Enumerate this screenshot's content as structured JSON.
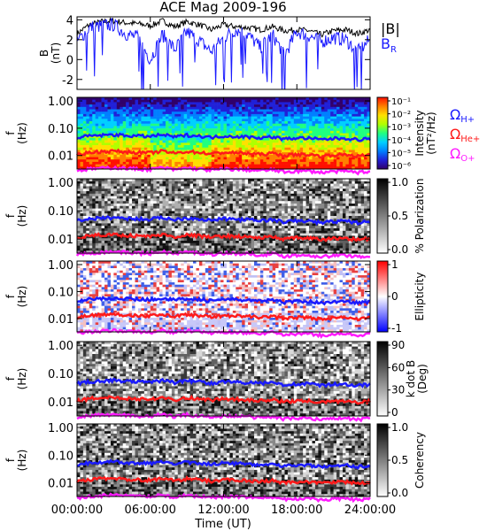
{
  "title": "ACE Mag 2009-196",
  "xlabel": "Time (UT)",
  "x_ticks": [
    "00:00:00",
    "06:00:00",
    "12:00:00",
    "18:00:00",
    "24:00:00"
  ],
  "x_tick_hours": [
    0,
    6,
    12,
    18,
    24
  ],
  "colors": {
    "B": "#000000",
    "BR": "#1a1aff",
    "H": "#1a1aff",
    "He": "#ff1a1a",
    "O": "#ff1aff"
  },
  "chart_data": [
    {
      "type": "line",
      "ylabel": [
        "B",
        "(nT)"
      ],
      "ylim": [
        -3,
        4.3
      ],
      "y_ticks": [
        "4",
        "2",
        "0",
        "-2"
      ],
      "y_tick_values": [
        4,
        2,
        0,
        -2
      ],
      "legend": [
        "|B|",
        "BR"
      ],
      "legend_main": [
        "|B|",
        "B"
      ],
      "legend_sub": [
        "",
        "R"
      ],
      "series": [
        {
          "name": "|B|",
          "x_hours": [
            0,
            1,
            2,
            3,
            4,
            5,
            6,
            7,
            8,
            9,
            10,
            11,
            12,
            13,
            14,
            15,
            16,
            17,
            18,
            19,
            20,
            21,
            22,
            23,
            24
          ],
          "values": [
            2.6,
            3.5,
            3.8,
            3.9,
            3.7,
            3.6,
            3.4,
            3.9,
            3.3,
            3.8,
            3.5,
            3.0,
            3.5,
            3.3,
            3.2,
            3.0,
            3.3,
            2.9,
            3.0,
            2.9,
            2.5,
            2.9,
            3.0,
            2.6,
            3.0
          ]
        },
        {
          "name": "BR",
          "x_hours": [
            0,
            1,
            2,
            3,
            4,
            5,
            6,
            7,
            8,
            9,
            10,
            11,
            12,
            13,
            14,
            15,
            16,
            17,
            18,
            19,
            20,
            21,
            22,
            23,
            24
          ],
          "values": [
            1.8,
            3.2,
            3.4,
            3.5,
            2.6,
            2.2,
            0.0,
            2.5,
            1.0,
            2.8,
            1.9,
            0.8,
            2.2,
            3.0,
            2.5,
            1.2,
            2.5,
            0.5,
            2.8,
            2.4,
            1.8,
            2.2,
            2.0,
            0.8,
            2.0
          ]
        }
      ]
    },
    {
      "type": "heatmap",
      "ylabel": [
        "f",
        "(Hz)"
      ],
      "y_ticks": [
        "1.00",
        "0.10",
        "0.01"
      ],
      "y_tick_values": [
        1,
        0.1,
        0.01
      ],
      "colorbar": {
        "label": "Intensity",
        "unit": "(nT²/Hz)",
        "ticks": [
          "10⁻¹",
          "10⁻²",
          "10⁻³",
          "10⁻⁴",
          "10⁻⁵",
          "10⁻⁶"
        ]
      },
      "legend": [
        "ΩH+",
        "ΩHe+",
        "ΩO+"
      ],
      "legend_main": [
        "Ω",
        "Ω",
        "Ω"
      ],
      "legend_sub": [
        "H+",
        "He+",
        "O+"
      ],
      "legend_colors": [
        "#1a1aff",
        "#ff1a1a",
        "#ff1aff"
      ]
    },
    {
      "type": "heatmap",
      "ylabel": [
        "f",
        "(Hz)"
      ],
      "y_ticks": [
        "1.00",
        "0.10",
        "0.01"
      ],
      "y_tick_values": [
        1,
        0.1,
        0.01
      ],
      "colorbar": {
        "label": "% Polarization",
        "ticks": [
          "1.0",
          "0.5",
          "0.0"
        ]
      }
    },
    {
      "type": "heatmap",
      "ylabel": [
        "f",
        "(Hz)"
      ],
      "y_ticks": [
        "1.00",
        "0.10",
        "0.01"
      ],
      "y_tick_values": [
        1,
        0.1,
        0.01
      ],
      "colorbar": {
        "label": "Ellipticity",
        "ticks": [
          "1",
          "0",
          "-1"
        ]
      }
    },
    {
      "type": "heatmap",
      "ylabel": [
        "f",
        "(Hz)"
      ],
      "y_ticks": [
        "1.00",
        "0.10",
        "0.01"
      ],
      "y_tick_values": [
        1,
        0.1,
        0.01
      ],
      "colorbar": {
        "label": "k dot B",
        "unit": "(Deg)",
        "ticks": [
          "90",
          "60",
          "30",
          "0"
        ]
      }
    },
    {
      "type": "heatmap",
      "ylabel": [
        "f",
        "(Hz)"
      ],
      "y_ticks": [
        "1.00",
        "0.10",
        "0.01"
      ],
      "y_tick_values": [
        1,
        0.1,
        0.01
      ],
      "colorbar": {
        "label": "Coherency",
        "ticks": [
          "1.0",
          "0.5",
          "0.0"
        ]
      }
    }
  ],
  "gyrofrequency_lines": {
    "x_hours": [
      0,
      1,
      2,
      3,
      4,
      5,
      6,
      7,
      8,
      9,
      10,
      11,
      12,
      13,
      14,
      15,
      16,
      17,
      18,
      19,
      20,
      21,
      22,
      23,
      24
    ],
    "H_plus": [
      0.045,
      0.052,
      0.055,
      0.058,
      0.054,
      0.052,
      0.05,
      0.058,
      0.048,
      0.056,
      0.052,
      0.046,
      0.052,
      0.05,
      0.048,
      0.045,
      0.048,
      0.04,
      0.044,
      0.043,
      0.038,
      0.042,
      0.043,
      0.038,
      0.042
    ],
    "He_plus": [
      0.011,
      0.013,
      0.014,
      0.0145,
      0.0135,
      0.013,
      0.0125,
      0.0145,
      0.012,
      0.014,
      0.013,
      0.0115,
      0.013,
      0.0125,
      0.012,
      0.011,
      0.012,
      0.01,
      0.011,
      0.0108,
      0.0095,
      0.0105,
      0.0108,
      0.0095,
      0.0105
    ],
    "O_plus": [
      0.0028,
      0.0032,
      0.0034,
      0.0036,
      0.0034,
      0.0032,
      0.0031,
      0.0036,
      0.003,
      0.0035,
      0.0032,
      0.0029,
      0.0032,
      0.0031,
      0.003,
      0.0028,
      0.003,
      0.0025,
      0.0027,
      0.0027,
      0.0024,
      0.0026,
      0.0027,
      0.0024,
      0.0026
    ]
  }
}
